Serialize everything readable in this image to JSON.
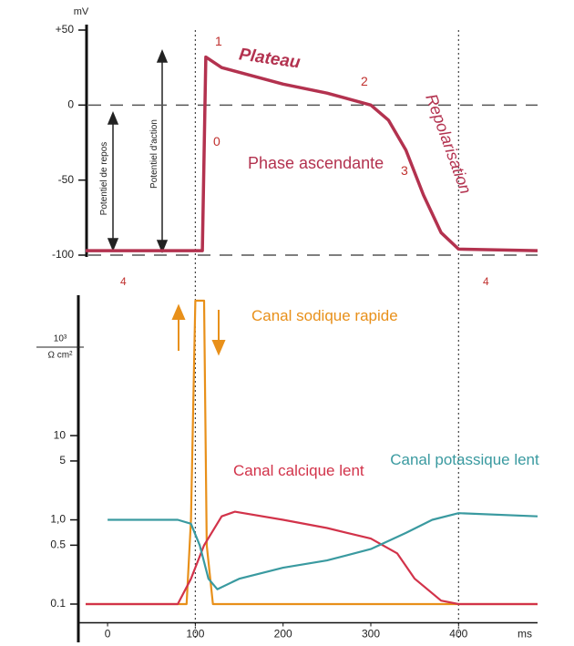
{
  "chart_data": [
    {
      "type": "line",
      "y_label": "mV",
      "xlim": [
        -25,
        490
      ],
      "ylim": [
        -100,
        50
      ],
      "yticks": [
        {
          "value": 50,
          "label": "+50"
        },
        0,
        -50,
        -100
      ],
      "hlines": [
        0,
        -100
      ],
      "vlines": [
        100,
        400
      ],
      "series": [
        {
          "color": "#b3324f",
          "x": [
            -25,
            108,
            112,
            130,
            200,
            250,
            300,
            320,
            340,
            360,
            380,
            400,
            490
          ],
          "values": [
            -97,
            -97,
            32,
            25,
            14,
            8,
            0,
            -10,
            -30,
            -60,
            -85,
            -96,
            -97
          ]
        }
      ],
      "annotations": [
        "1",
        "Plateau",
        "2",
        "0",
        "Phase ascendante",
        "3",
        "Repolarisation",
        "4",
        "4",
        "Potentiel de repos",
        "Potentiel d'action"
      ]
    },
    {
      "type": "line",
      "y_label": {
        "numerator": "10³",
        "denominator": "Ω cm²"
      },
      "x_label": "ms",
      "log_y": true,
      "xlim": [
        -25,
        490
      ],
      "ylim": [
        0.06,
        400
      ],
      "xticks": [
        0,
        100,
        200,
        300,
        400
      ],
      "yticks": [
        0.1,
        0.5,
        {
          "value": 1.0,
          "label": "1,0"
        },
        5,
        10
      ],
      "series": [
        {
          "name": "Canal sodique rapide",
          "color": "#e8901a",
          "x": [
            -25,
            90,
            95,
            100,
            110,
            113,
            120,
            490
          ],
          "values": [
            0.1,
            0.1,
            1,
            400,
            400,
            0.5,
            0.1,
            0.1
          ]
        },
        {
          "name": "Canal calcique lent",
          "color": "#d2334a",
          "x": [
            -25,
            80,
            95,
            110,
            130,
            145,
            200,
            250,
            300,
            330,
            350,
            380,
            400,
            490
          ],
          "values": [
            0.1,
            0.1,
            0.2,
            0.5,
            1.1,
            1.25,
            1.0,
            0.8,
            0.6,
            0.4,
            0.2,
            0.11,
            0.1,
            0.1
          ]
        },
        {
          "name": "Canal potassique lent",
          "color": "#3a9aa0",
          "x": [
            0,
            80,
            95,
            105,
            115,
            125,
            150,
            200,
            250,
            300,
            340,
            370,
            400,
            490
          ],
          "values": [
            1.0,
            1.0,
            0.9,
            0.5,
            0.2,
            0.15,
            0.2,
            0.27,
            0.33,
            0.45,
            0.7,
            1.0,
            1.2,
            1.1
          ]
        }
      ]
    }
  ]
}
